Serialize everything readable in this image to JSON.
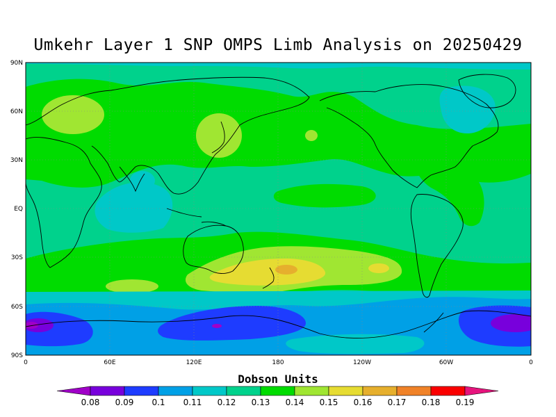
{
  "title": "Umkehr Layer 1 SNP OMPS Limb Analysis on 20250429",
  "lat_ticks": [
    "90N",
    "60N",
    "30N",
    "EQ",
    "30S",
    "60S",
    "90S"
  ],
  "lon_ticks": [
    "0",
    "60E",
    "120E",
    "180",
    "120W",
    "60W",
    "0"
  ],
  "colorbar": {
    "title": "Dobson Units",
    "labels": [
      "0.08",
      "0.09",
      "0.1",
      "0.11",
      "0.12",
      "0.13",
      "0.14",
      "0.15",
      "0.16",
      "0.17",
      "0.18",
      "0.19"
    ],
    "colors": [
      "#a000c8",
      "#7800dc",
      "#1e3cff",
      "#00a0e6",
      "#00c8c8",
      "#00d28c",
      "#00dc00",
      "#a0e632",
      "#e6dc32",
      "#e6af2d",
      "#f08228",
      "#fa0000",
      "#e6147d"
    ]
  }
}
